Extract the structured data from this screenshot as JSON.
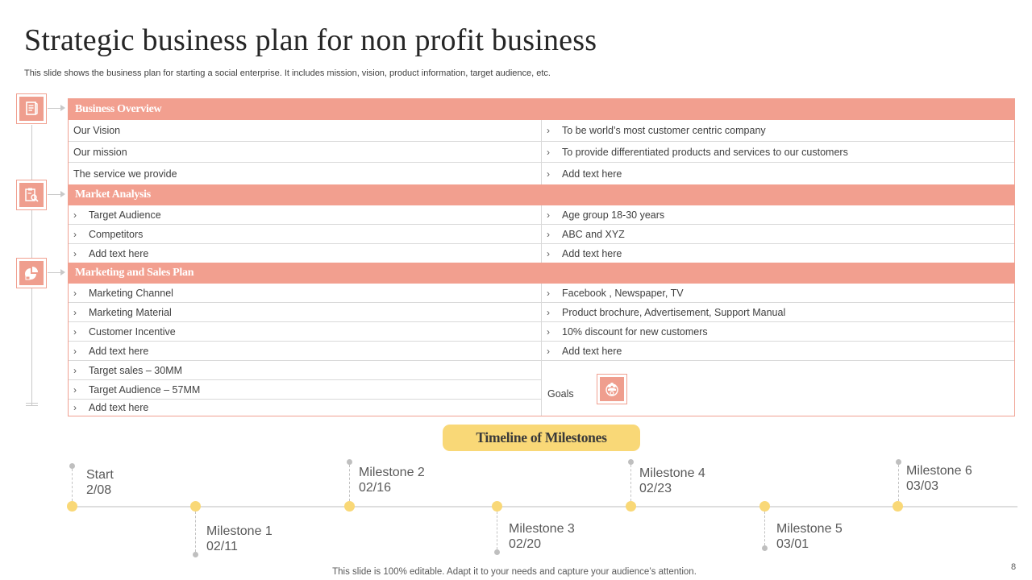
{
  "header": {
    "title": "Strategic business plan for non profit business",
    "subtitle": "This slide shows the business plan for starting a social enterprise. It includes mission, vision, product information, target audience, etc."
  },
  "icons": {
    "business_overview": "document-icon",
    "market_analysis": "clipboard-search-icon",
    "marketing_sales": "pie-chart-icon",
    "goals": "team-target-icon"
  },
  "colors": {
    "accent_salmon": "#F29F8F",
    "accent_yellow": "#F9D877"
  },
  "business_overview": {
    "heading": "Business Overview",
    "rows": [
      {
        "left": "Our Vision",
        "right": "To be world’s  most customer centric company"
      },
      {
        "left": "Our mission",
        "right": "To provide  differentiated  products and services to our customers"
      },
      {
        "left": "The service  we provide",
        "right": "Add text here"
      }
    ]
  },
  "market_analysis": {
    "heading": "Market Analysis",
    "rows": [
      {
        "left": "Target  Audience",
        "right": "Age group  18-30 years"
      },
      {
        "left": "Competitors",
        "right": "ABC and XYZ"
      },
      {
        "left": "Add text here",
        "right": "Add text here"
      }
    ]
  },
  "marketing_sales": {
    "heading": "Marketing and Sales Plan",
    "rows": [
      {
        "left": "Marketing Channel",
        "right": " Facebook , Newspaper,  TV"
      },
      {
        "left": "Marketing Material",
        "right": "Product brochure,  Advertisement,  Support Manual"
      },
      {
        "left": "Customer Incentive",
        "right": " 10% discount for new customers"
      },
      {
        "left": "Add text here",
        "right": "Add text here"
      }
    ],
    "goal_rows": [
      "Target  sales – 30MM",
      "Target  Audience – 57MM",
      "Add text here"
    ],
    "goals_label": "Goals"
  },
  "timeline": {
    "title": "Timeline of Milestones",
    "milestones": [
      {
        "name": "Start",
        "date": "2/08"
      },
      {
        "name": "Milestone  1",
        "date": "02/11"
      },
      {
        "name": "Milestone  2",
        "date": "02/16"
      },
      {
        "name": "Milestone  3",
        "date": "02/20"
      },
      {
        "name": "Milestone  4",
        "date": "02/23"
      },
      {
        "name": "Milestone  5",
        "date": "03/01"
      },
      {
        "name": "Milestone  6",
        "date": "03/03"
      }
    ]
  },
  "footer": {
    "note": "This slide is 100% editable. Adapt it to your needs and capture your audience’s attention.",
    "page_number": "8"
  }
}
